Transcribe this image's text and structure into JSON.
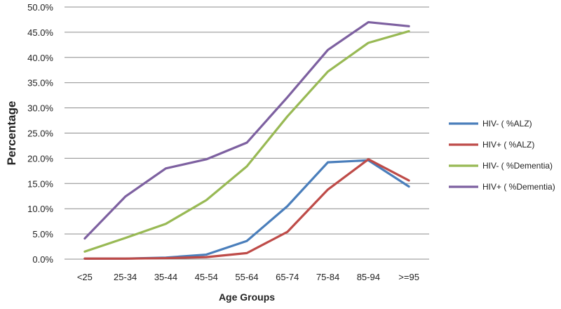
{
  "chart_data": {
    "type": "line",
    "xlabel": "Age Groups",
    "ylabel": "Percentage",
    "categories": [
      "<25",
      "25-34",
      "35-44",
      "45-54",
      "55-64",
      "65-74",
      "75-84",
      "85-94",
      ">=95"
    ],
    "ylim": [
      0,
      50
    ],
    "yticks": [
      "0.0%",
      "5.0%",
      "10.0%",
      "15.0%",
      "20.0%",
      "25.0%",
      "30.0%",
      "35.0%",
      "40.0%",
      "45.0%",
      "50.0%"
    ],
    "grid": true,
    "legend_position": "right",
    "series": [
      {
        "name": "HIV- ( %ALZ)",
        "color": "#4a7ebb",
        "values": [
          0.1,
          0.1,
          0.3,
          0.9,
          3.6,
          10.5,
          19.2,
          19.6,
          14.4
        ]
      },
      {
        "name": "HIV+ ( %ALZ)",
        "color": "#be4b48",
        "values": [
          0.1,
          0.1,
          0.2,
          0.4,
          1.2,
          5.4,
          13.8,
          19.8,
          15.6
        ]
      },
      {
        "name": "HIV- ( %Dementia)",
        "color": "#98b954",
        "values": [
          1.5,
          4.2,
          7.0,
          11.7,
          18.4,
          28.3,
          37.2,
          42.9,
          45.2
        ]
      },
      {
        "name": "HIV+ ( %Dementia)",
        "color": "#7d60a0",
        "values": [
          4.1,
          12.4,
          18.0,
          19.8,
          23.1,
          32.1,
          41.5,
          47.0,
          46.2
        ]
      }
    ]
  }
}
